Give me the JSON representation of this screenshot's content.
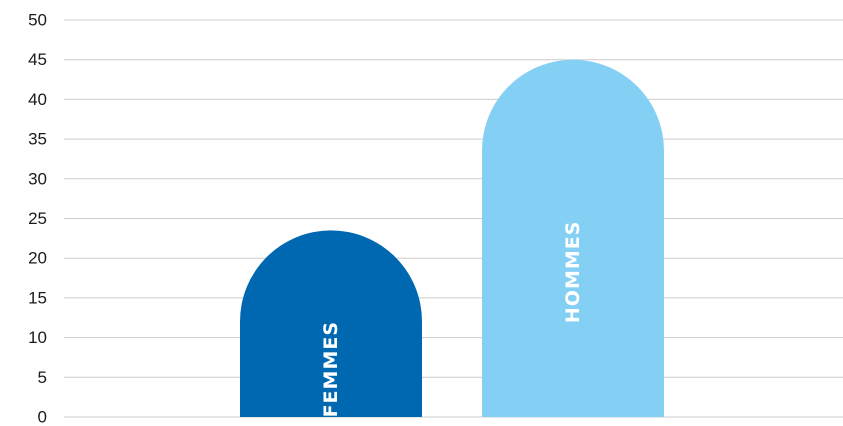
{
  "chart_data": {
    "type": "bar",
    "categories": [
      "FEMMES",
      "HOMMES"
    ],
    "values": [
      23.5,
      45
    ],
    "colors": [
      "#0068b1",
      "#84cff4"
    ],
    "ylim": [
      0,
      50
    ],
    "yticks": [
      0,
      5,
      10,
      15,
      20,
      25,
      30,
      35,
      40,
      45,
      50
    ],
    "grid": true,
    "bar_shape": "rounded-top",
    "category_labels_inside_bars": true
  }
}
